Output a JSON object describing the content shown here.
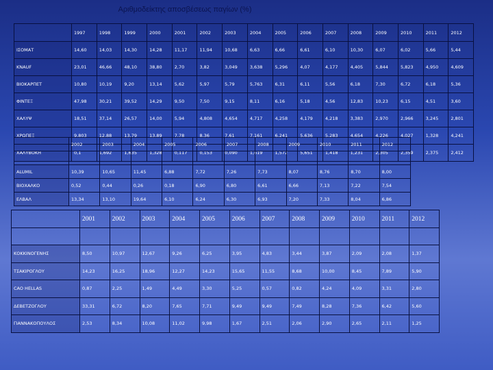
{
  "title": "Αριθμοδείκτης αποσβέσεως παγίων (%)",
  "table1": {
    "years": [
      "1997",
      "1998",
      "1999",
      "2000",
      "2001",
      "2002",
      "2003",
      "2004",
      "2005",
      "2006",
      "2007",
      "2008",
      "2009",
      "2010",
      "2011",
      "2012"
    ],
    "rows": [
      {
        "name": "ΙΣΟΜΑΤ",
        "values": [
          "14,60",
          "14,03",
          "14,30",
          "14,28",
          "11,17",
          "11,94",
          "10,68",
          "6,63",
          "6,66",
          "6,61",
          "6,10",
          "10,30",
          "6,07",
          "6,02",
          "5,66",
          "5,44"
        ]
      },
      {
        "name": "KNAUF",
        "values": [
          "23,01",
          "46,66",
          "48,10",
          "38,80",
          "2,70",
          "3,82",
          "3,049",
          "3,638",
          "5,296",
          "4,07",
          "4,177",
          "4,405",
          "5,844",
          "5,823",
          "4,950",
          "4,609"
        ]
      },
      {
        "name": "ΒΙΟΚΑΡΠΕΤ",
        "values": [
          "10,80",
          "10,19",
          "9,20",
          "13,14",
          "5,62",
          "5,97",
          "5,79",
          "5,763",
          "6,31",
          "6,11",
          "5,56",
          "6,18",
          "7,30",
          "6,72",
          "6,18",
          "5,36"
        ]
      },
      {
        "name": "ΦΙΝΤΕΞ",
        "values": [
          "47,98",
          "30,21",
          "39,52",
          "14,29",
          "9,50",
          "7,50",
          "9,15",
          "8,11",
          "6,16",
          "5,18",
          "4,56",
          "12,83",
          "10,23",
          "6,15",
          "4,51",
          "3,60"
        ]
      },
      {
        "name": "ΧΑΛΥΨ",
        "values": [
          "18,51",
          "37,14",
          "26,57",
          "14,00",
          "5,94",
          "4,808",
          "4,654",
          "4,717",
          "4,258",
          "4,179",
          "4,218",
          "3,383",
          "2,970",
          "2,966",
          "3,245",
          "2,801"
        ]
      },
      {
        "name": "ΧΡΩΠΕΞ",
        "values": [
          "9,803",
          "12,88",
          "13,79",
          "13,89",
          "7,78",
          "8,36",
          "7,61",
          "7,161",
          "6,241",
          "5,636",
          "5,283",
          "4,654",
          "4,226",
          "4,027",
          "1,328",
          "4,241"
        ]
      },
      {
        "name": "ΧΑΛΥΒΟΚΗ",
        "values": [
          "0,1",
          "1,692",
          "1,635",
          "1,328",
          "0,117",
          "0,153",
          "0,090",
          "1,619",
          "1,572",
          "5,651",
          "1,418",
          "1,231",
          "2,305",
          "2,359",
          "2,375",
          "2,412"
        ]
      }
    ]
  },
  "table2": {
    "years": [
      "2002",
      "2003",
      "2004",
      "2005",
      "2006",
      "2007",
      "2008",
      "2009",
      "2010",
      "2011",
      "2012"
    ],
    "rows": [
      {
        "name": "ALUMIL",
        "values": [
          "10,39",
          "10,65",
          "11,45",
          "6,88",
          "7,72",
          "7,26",
          "7,73",
          "8,07",
          "8,76",
          "8,70",
          "8,00"
        ]
      },
      {
        "name": "ΒΙΟΧΑΛΚΟ",
        "values": [
          "0,52",
          "0,44",
          "0,26",
          "0,18",
          "6,90",
          "6,80",
          "6,61",
          "6,66",
          "7,13",
          "7,22",
          "7,54"
        ]
      },
      {
        "name": "ΕΛΒΑΛ",
        "values": [
          "13,34",
          "13,10",
          "19,64",
          "6,10",
          "6,24",
          "6,30",
          "6,93",
          "7,20",
          "7,33",
          "8,04",
          "6,86"
        ]
      }
    ]
  },
  "table3": {
    "years": [
      "2001",
      "2002",
      "2003",
      "2004",
      "2005",
      "2006",
      "2007",
      "2008",
      "2009",
      "2010",
      "2011",
      "2012"
    ],
    "rows": [
      {
        "name": "ΚΟΚΚΙΝΟΓΕΝΗΣ",
        "values": [
          "8,50",
          "10,97",
          "12,67",
          "9,26",
          "6,25",
          "3,95",
          "4,83",
          "3,44",
          "3,87",
          "2,09",
          "2,08",
          "1,37"
        ]
      },
      {
        "name": "ΤΣΑΚΙΡΟΓΛΟΥ",
        "values": [
          "14,23",
          "16,25",
          "18,96",
          "12,27",
          "14,23",
          "15,65",
          "11,55",
          "8,68",
          "10,00",
          "8,45",
          "7,89",
          "5,90"
        ]
      },
      {
        "name": "CAO HELLAS",
        "values": [
          "0,87",
          "2,25",
          "1,49",
          "4,49",
          "3,30",
          "5,25",
          "0,57",
          "0,82",
          "4,24",
          "4,09",
          "3,31",
          "2,80"
        ]
      },
      {
        "name": "ΔΕΒΕΤΖΟΓΛΟΥ",
        "values": [
          "33,31",
          "6,72",
          "8,20",
          "7,65",
          "7,71",
          "9,49",
          "9,49",
          "7,49",
          "8,28",
          "7,36",
          "6,42",
          "5,60"
        ]
      },
      {
        "name": "ΓΙΑΝΝΑΚΟΠΟΥΛΟΣ",
        "values": [
          "2,53",
          "8,34",
          "10,08",
          "11,02",
          "9,98",
          "1,67",
          "2,51",
          "2,06",
          "2,90",
          "2,65",
          "2,11",
          "1,25"
        ]
      }
    ]
  }
}
